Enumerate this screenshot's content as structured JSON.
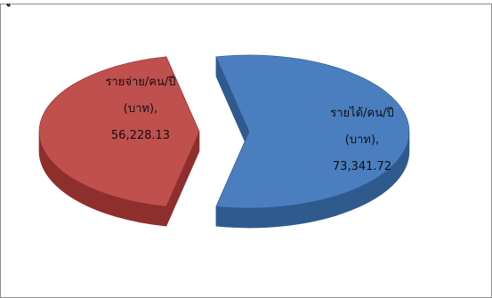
{
  "heading_fragment": "ู",
  "colors": {
    "income_top": "#4a7ebf",
    "income_side": "#2f5a8e",
    "expense_top": "#c0504d",
    "expense_side": "#8e2f2d"
  },
  "chart_data": {
    "type": "pie",
    "title": "",
    "labels": [
      "รายได้/คน/ปี (บาท)",
      "รายจ่าย/คน/ปี (บาท)"
    ],
    "values": [
      73341.72,
      56228.13
    ],
    "exploded": true,
    "three_d": true,
    "legend": "none",
    "data_labels": {
      "income": [
        "รายได้/คน/ปี",
        "(บาท),",
        "73,341.72"
      ],
      "expense": [
        "รายจ่าย/คน/ปี",
        "(บาท),",
        "56,228.13"
      ]
    }
  }
}
